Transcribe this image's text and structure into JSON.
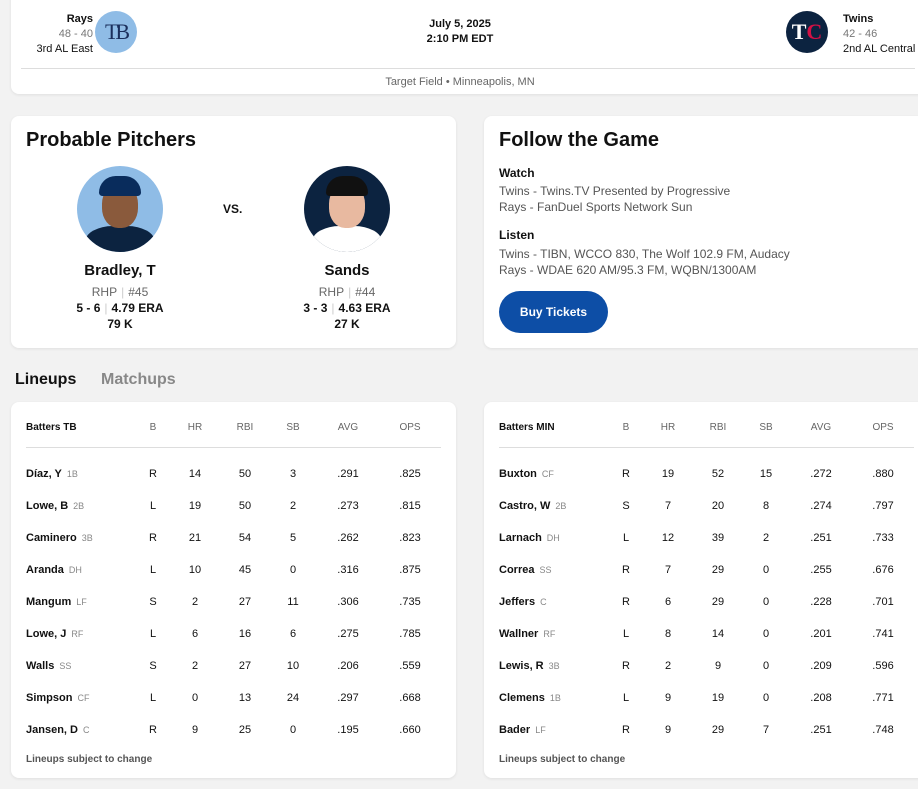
{
  "game": {
    "away": {
      "name": "Rays",
      "record": "48 - 40",
      "standing": "3rd AL East",
      "logo_text": "TB",
      "color": "#8fbce6"
    },
    "home": {
      "name": "Twins",
      "record": "42 - 46",
      "standing": "2nd AL Central",
      "logo_text": "TC",
      "color": "#0c2340"
    },
    "date": "July 5, 2025",
    "time": "2:10 PM EDT",
    "venue": "Target Field • Minneapolis, MN"
  },
  "probable_pitchers": {
    "title": "Probable Pitchers",
    "vs": "VS.",
    "pitchers": [
      {
        "name": "Bradley, T",
        "throws": "RHP",
        "number": "#45",
        "record": "5 - 6",
        "era": "4.79 ERA",
        "strikeouts": "79 K"
      },
      {
        "name": "Sands",
        "throws": "RHP",
        "number": "#44",
        "record": "3 - 3",
        "era": "4.63 ERA",
        "strikeouts": "27 K"
      }
    ]
  },
  "follow": {
    "title": "Follow the Game",
    "watch_label": "Watch",
    "watch": [
      "Twins - Twins.TV Presented by Progressive",
      "Rays - FanDuel Sports Network Sun"
    ],
    "listen_label": "Listen",
    "listen": [
      "Twins - TIBN, WCCO 830, The Wolf 102.9 FM, Audacy",
      "Rays - WDAE 620 AM/95.3 FM, WQBN/1300AM"
    ],
    "button": "Buy Tickets"
  },
  "tabs": [
    {
      "label": "Lineups",
      "active": true
    },
    {
      "label": "Matchups",
      "active": false
    }
  ],
  "columns": [
    "B",
    "HR",
    "RBI",
    "SB",
    "AVG",
    "OPS"
  ],
  "lineups": [
    {
      "header": "Batters TB",
      "note": "Lineups subject to change",
      "rows": [
        [
          "Díaz, Y",
          "1B",
          "R",
          "14",
          "50",
          "3",
          ".291",
          ".825"
        ],
        [
          "Lowe, B",
          "2B",
          "L",
          "19",
          "50",
          "2",
          ".273",
          ".815"
        ],
        [
          "Caminero",
          "3B",
          "R",
          "21",
          "54",
          "5",
          ".262",
          ".823"
        ],
        [
          "Aranda",
          "DH",
          "L",
          "10",
          "45",
          "0",
          ".316",
          ".875"
        ],
        [
          "Mangum",
          "LF",
          "S",
          "2",
          "27",
          "11",
          ".306",
          ".735"
        ],
        [
          "Lowe, J",
          "RF",
          "L",
          "6",
          "16",
          "6",
          ".275",
          ".785"
        ],
        [
          "Walls",
          "SS",
          "S",
          "2",
          "27",
          "10",
          ".206",
          ".559"
        ],
        [
          "Simpson",
          "CF",
          "L",
          "0",
          "13",
          "24",
          ".297",
          ".668"
        ],
        [
          "Jansen, D",
          "C",
          "R",
          "9",
          "25",
          "0",
          ".195",
          ".660"
        ]
      ]
    },
    {
      "header": "Batters MIN",
      "note": "Lineups subject to change",
      "rows": [
        [
          "Buxton",
          "CF",
          "R",
          "19",
          "52",
          "15",
          ".272",
          ".880"
        ],
        [
          "Castro, W",
          "2B",
          "S",
          "7",
          "20",
          "8",
          ".274",
          ".797"
        ],
        [
          "Larnach",
          "DH",
          "L",
          "12",
          "39",
          "2",
          ".251",
          ".733"
        ],
        [
          "Correa",
          "SS",
          "R",
          "7",
          "29",
          "0",
          ".255",
          ".676"
        ],
        [
          "Jeffers",
          "C",
          "R",
          "6",
          "29",
          "0",
          ".228",
          ".701"
        ],
        [
          "Wallner",
          "RF",
          "L",
          "8",
          "14",
          "0",
          ".201",
          ".741"
        ],
        [
          "Lewis, R",
          "3B",
          "R",
          "2",
          "9",
          "0",
          ".209",
          ".596"
        ],
        [
          "Clemens",
          "1B",
          "L",
          "9",
          "19",
          "0",
          ".208",
          ".771"
        ],
        [
          "Bader",
          "LF",
          "R",
          "9",
          "29",
          "7",
          ".251",
          ".748"
        ]
      ]
    }
  ]
}
